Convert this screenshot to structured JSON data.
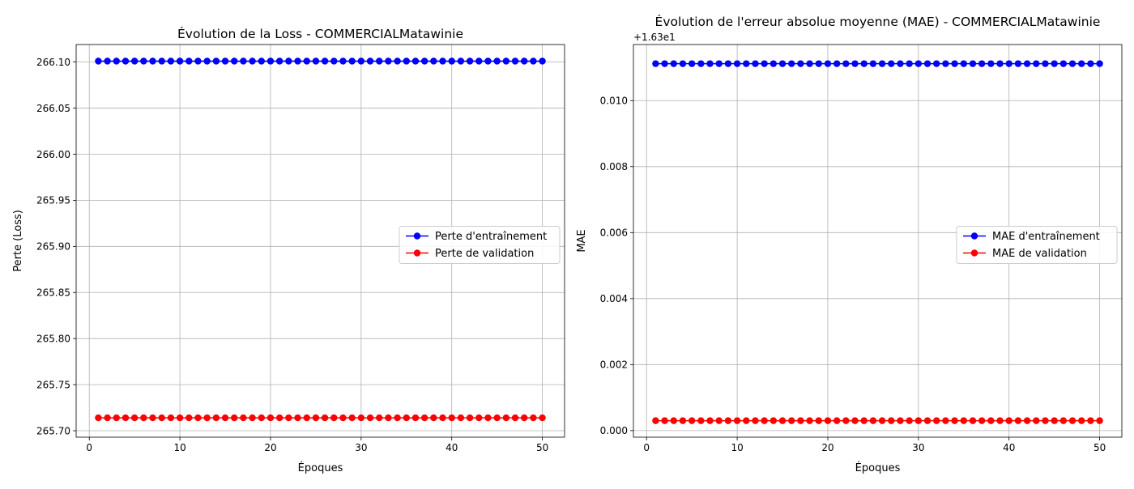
{
  "chart_data": [
    {
      "type": "line",
      "title": "Évolution de la Loss - COMMERCIALMatawinie",
      "xlabel": "Époques",
      "ylabel": "Perte (Loss)",
      "offset_text": "",
      "xlim": [
        -1.45,
        52.45
      ],
      "ylim": [
        265.693,
        266.119
      ],
      "xticks": [
        0,
        10,
        20,
        30,
        40,
        50
      ],
      "xtick_labels": [
        "0",
        "10",
        "20",
        "30",
        "40",
        "50"
      ],
      "yticks": [
        265.7,
        265.75,
        265.8,
        265.85,
        265.9,
        265.95,
        266.0,
        266.05,
        266.1
      ],
      "ytick_labels": [
        "265.70",
        "265.75",
        "265.80",
        "265.85",
        "265.90",
        "265.95",
        "266.00",
        "266.05",
        "266.10"
      ],
      "grid": true,
      "legend_position": "center-right",
      "x_start": 1,
      "x_end": 50,
      "series": [
        {
          "name": "Perte d'entraînement",
          "color": "#0000ff",
          "marker": "circle",
          "constant_value": 266.101
        },
        {
          "name": "Perte de validation",
          "color": "#ff0000",
          "marker": "circle",
          "constant_value": 265.714
        }
      ]
    },
    {
      "type": "line",
      "title": "Évolution de l'erreur absolue moyenne (MAE) - COMMERCIALMatawinie",
      "xlabel": "Époques",
      "ylabel": "MAE",
      "offset_text": "+1.63e1",
      "xlim": [
        -1.45,
        52.45
      ],
      "ylim": [
        -0.0002,
        0.0117
      ],
      "xticks": [
        0,
        10,
        20,
        30,
        40,
        50
      ],
      "xtick_labels": [
        "0",
        "10",
        "20",
        "30",
        "40",
        "50"
      ],
      "yticks": [
        0.0,
        0.002,
        0.004,
        0.006,
        0.008,
        0.01
      ],
      "ytick_labels": [
        "0.000",
        "0.002",
        "0.004",
        "0.006",
        "0.008",
        "0.010"
      ],
      "grid": true,
      "legend_position": "center-right",
      "x_start": 1,
      "x_end": 50,
      "series": [
        {
          "name": "MAE d'entraînement",
          "color": "#0000ff",
          "marker": "circle",
          "constant_value": 0.01112
        },
        {
          "name": "MAE de validation",
          "color": "#ff0000",
          "marker": "circle",
          "constant_value": 0.0003
        }
      ]
    }
  ]
}
